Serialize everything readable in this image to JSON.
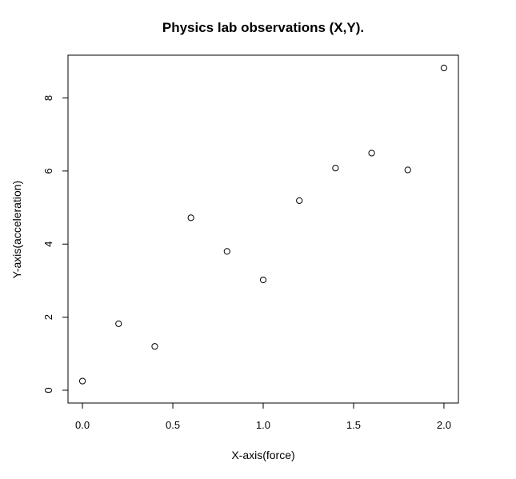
{
  "chart_data": {
    "type": "scatter",
    "title": "Physics lab observations (X,Y).",
    "xlabel": "X-axis(force)",
    "ylabel": "Y-axis(acceleration)",
    "x": [
      0.0,
      0.2,
      0.4,
      0.6,
      0.8,
      1.0,
      1.2,
      1.4,
      1.6,
      1.8,
      2.0
    ],
    "y": [
      0.25,
      1.82,
      1.2,
      4.72,
      3.8,
      3.02,
      5.19,
      6.08,
      6.49,
      6.03,
      8.82
    ],
    "xlim": [
      -0.08,
      2.08
    ],
    "ylim": [
      -0.35,
      9.17
    ],
    "xticks": [
      0.0,
      0.5,
      1.0,
      1.5,
      2.0
    ],
    "xtick_labels": [
      "0.0",
      "0.5",
      "1.0",
      "1.5",
      "2.0"
    ],
    "yticks": [
      0,
      2,
      4,
      6,
      8
    ],
    "ytick_labels": [
      "0",
      "2",
      "4",
      "6",
      "8"
    ],
    "grid": false,
    "marker": "open-circle"
  }
}
